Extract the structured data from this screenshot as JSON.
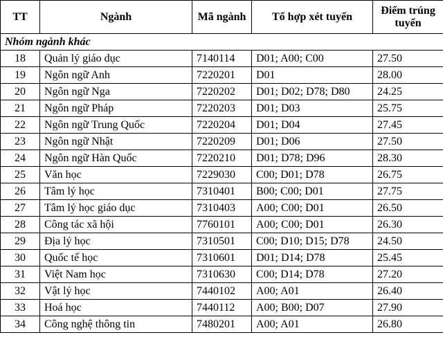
{
  "table": {
    "header": [
      "TT",
      "Ngành",
      "Mã ngành",
      "Tổ hợp xét tuyển",
      "Điểm trúng tuyển"
    ],
    "group": "Nhóm ngành khác",
    "rows": [
      [
        "18",
        "Quản lý giáo dục",
        "7140114",
        "D01; A00; C00",
        "27.50"
      ],
      [
        "19",
        "Ngôn ngữ Anh",
        "7220201",
        "D01",
        "28.00"
      ],
      [
        "20",
        "Ngôn ngữ Nga",
        "7220202",
        "D01; D02; D78; D80",
        "24.25"
      ],
      [
        "21",
        "Ngôn ngữ Pháp",
        "7220203",
        "D01; D03",
        "25.75"
      ],
      [
        "22",
        "Ngôn ngữ Trung Quốc",
        "7220204",
        "D01; D04",
        "27.45"
      ],
      [
        "23",
        "Ngôn ngữ Nhật",
        "7220209",
        "D01; D06",
        "27.50"
      ],
      [
        "24",
        "Ngôn ngữ Hàn Quốc",
        "7220210",
        "D01; D78; D96",
        "28.30"
      ],
      [
        "25",
        "Văn học",
        "7229030",
        "C00; D01; D78",
        "26.75"
      ],
      [
        "26",
        "Tâm lý học",
        "7310401",
        "B00; C00; D01",
        "27.75"
      ],
      [
        "27",
        "Tâm lý học giáo dục",
        "7310403",
        "A00; C00; D01",
        "26.50"
      ],
      [
        "28",
        "Công tác xã hội",
        "7760101",
        "A00; C00; D01",
        "26.30"
      ],
      [
        "29",
        "Địa lý học",
        "7310501",
        "C00; D10; D15; D78",
        "24.50"
      ],
      [
        "30",
        "Quốc tế học",
        "7310601",
        "D01; D14; D78",
        "25.45"
      ],
      [
        "31",
        "Việt Nam học",
        "7310630",
        "C00; D14; D78",
        "27.20"
      ],
      [
        "32",
        "Vật lý học",
        "7440102",
        "A00; A01",
        "26.40"
      ],
      [
        "33",
        "Hoá học",
        "7440112",
        "A00; B00; D07",
        "27.90"
      ],
      [
        "34",
        "Công nghệ thông tin",
        "7480201",
        "A00; A01",
        "26.80"
      ]
    ]
  }
}
